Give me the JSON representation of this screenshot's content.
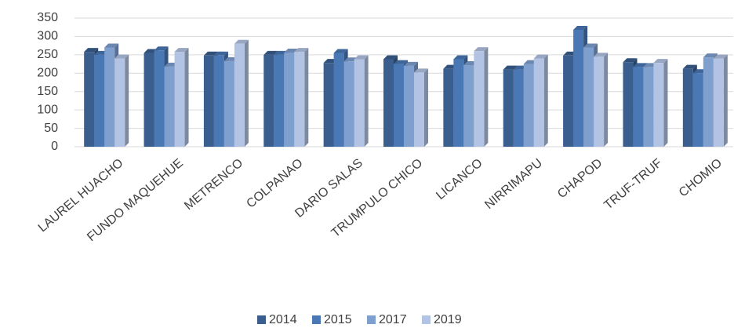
{
  "chart_data": {
    "type": "bar",
    "categories": [
      "LAUREL HUACHO",
      "FUNDO MAQUEHUE",
      "METRENCO",
      "COLPANAO",
      "DARIO SALAS",
      "TRUMPULO CHICO",
      "LICANCO",
      "NIRRIMAPU",
      "CHAPOD",
      "TRUF-TRUF",
      "CHOMIO"
    ],
    "series": [
      {
        "name": "2014",
        "color": "#3a5f8f",
        "values": [
          258,
          255,
          248,
          250,
          228,
          238,
          212,
          210,
          248,
          230,
          212
        ]
      },
      {
        "name": "2015",
        "color": "#4a78b5",
        "values": [
          250,
          262,
          248,
          250,
          255,
          225,
          238,
          210,
          318,
          217,
          200
        ]
      },
      {
        "name": "2017",
        "color": "#7f9fcf",
        "values": [
          270,
          218,
          233,
          256,
          232,
          220,
          222,
          225,
          270,
          217,
          243
        ]
      },
      {
        "name": "2019",
        "color": "#b3c3e3",
        "values": [
          240,
          258,
          280,
          258,
          238,
          202,
          260,
          240,
          245,
          228,
          240
        ]
      }
    ],
    "ylim": [
      0,
      350
    ],
    "yticks": [
      0,
      50,
      100,
      150,
      200,
      250,
      300,
      350
    ],
    "grid": true,
    "legend": "bottom"
  }
}
